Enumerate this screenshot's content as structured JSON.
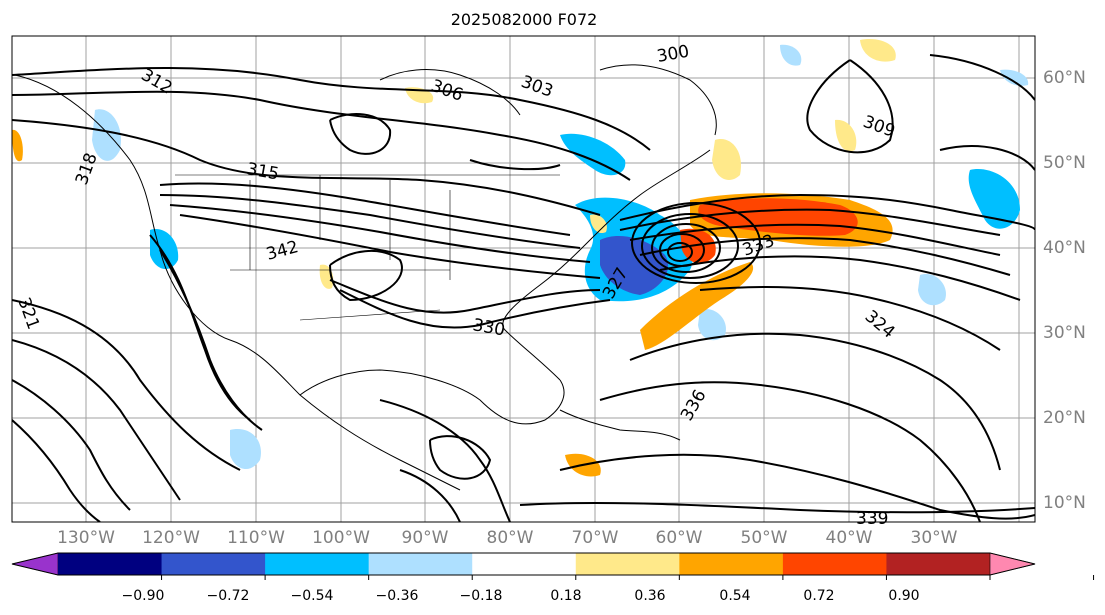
{
  "title": "2025082000 F072",
  "lon_labels": [
    "130°W",
    "120°W",
    "110°W",
    "100°W",
    "90°W",
    "80°W",
    "70°W",
    "60°W",
    "50°W",
    "40°W",
    "30°W"
  ],
  "lat_labels": [
    "60°N",
    "50°N",
    "40°N",
    "30°N",
    "20°N",
    "10°N"
  ],
  "colorbar": {
    "ticks": [
      "−0.90",
      "−0.72",
      "−0.54",
      "−0.36",
      "−0.18",
      "0.18",
      "0.36",
      "0.54",
      "0.72",
      "0.90"
    ],
    "colors": [
      "#9933cc",
      "#000080",
      "#3355cc",
      "#00bfff",
      "#aee0ff",
      "#ffffff",
      "#ffe98a",
      "#ffa500",
      "#ff4500",
      "#b22222",
      "#ff88b0"
    ]
  },
  "contour_labels": [
    "306",
    "300",
    "309",
    "312",
    "315",
    "321",
    "327",
    "330",
    "333",
    "336",
    "339",
    "342",
    "318",
    "324",
    "303"
  ]
}
